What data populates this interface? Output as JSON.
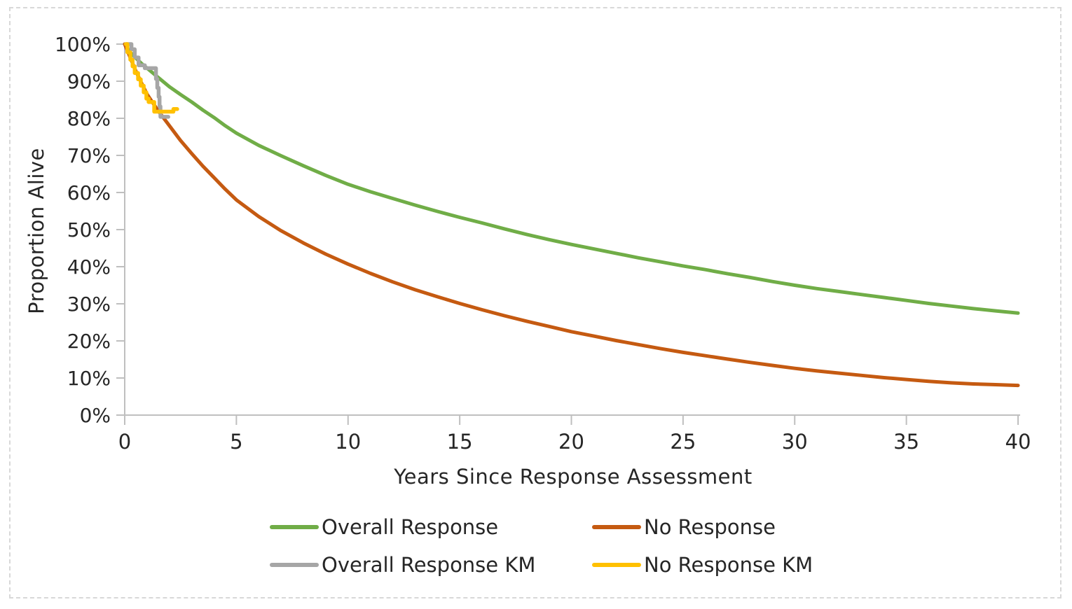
{
  "chart_data": {
    "type": "line",
    "title": "",
    "xlabel": "Years Since Response Assessment",
    "ylabel": "Proportion Alive",
    "xlim": [
      0,
      40
    ],
    "ylim": [
      0,
      100
    ],
    "grid": false,
    "legend_position": "bottom-two-rows",
    "axis_color": "#bfbfbf",
    "text_color": "#262626",
    "x_ticks": [
      {
        "value": 0,
        "label": "0"
      },
      {
        "value": 5,
        "label": "5"
      },
      {
        "value": 10,
        "label": "10"
      },
      {
        "value": 15,
        "label": "15"
      },
      {
        "value": 20,
        "label": "20"
      },
      {
        "value": 25,
        "label": "25"
      },
      {
        "value": 30,
        "label": "30"
      },
      {
        "value": 35,
        "label": "35"
      },
      {
        "value": 40,
        "label": "40"
      }
    ],
    "y_ticks": [
      {
        "value": 0,
        "label": "0%"
      },
      {
        "value": 10,
        "label": "10%"
      },
      {
        "value": 20,
        "label": "20%"
      },
      {
        "value": 30,
        "label": "30%"
      },
      {
        "value": 40,
        "label": "40%"
      },
      {
        "value": 50,
        "label": "50%"
      },
      {
        "value": 60,
        "label": "60%"
      },
      {
        "value": 70,
        "label": "70%"
      },
      {
        "value": 80,
        "label": "80%"
      },
      {
        "value": 90,
        "label": "90%"
      },
      {
        "value": 100,
        "label": "100%"
      }
    ],
    "series": [
      {
        "name": "Overall Response",
        "color": "#70ad47",
        "style": "smooth",
        "points": [
          [
            0,
            100
          ],
          [
            0.25,
            97.8
          ],
          [
            0.5,
            96.2
          ],
          [
            0.75,
            94.8
          ],
          [
            1,
            93.5
          ],
          [
            1.5,
            91
          ],
          [
            2,
            88.5
          ],
          [
            2.5,
            86.4
          ],
          [
            3,
            84.4
          ],
          [
            3.5,
            82.2
          ],
          [
            4,
            80.2
          ],
          [
            4.5,
            78
          ],
          [
            5,
            76
          ],
          [
            6,
            72.7
          ],
          [
            7,
            69.9
          ],
          [
            8,
            67.2
          ],
          [
            9,
            64.6
          ],
          [
            10,
            62.2
          ],
          [
            11,
            60.2
          ],
          [
            12,
            58.4
          ],
          [
            13,
            56.6
          ],
          [
            14,
            54.9
          ],
          [
            15,
            53.3
          ],
          [
            16,
            51.8
          ],
          [
            17,
            50.2
          ],
          [
            18,
            48.7
          ],
          [
            19,
            47.3
          ],
          [
            20,
            46
          ],
          [
            21,
            44.8
          ],
          [
            22,
            43.6
          ],
          [
            23,
            42.4
          ],
          [
            24,
            41.3
          ],
          [
            25,
            40.2
          ],
          [
            26,
            39.2
          ],
          [
            27,
            38.1
          ],
          [
            28,
            37.1
          ],
          [
            29,
            36
          ],
          [
            30,
            35
          ],
          [
            31,
            34.1
          ],
          [
            32,
            33.3
          ],
          [
            33,
            32.5
          ],
          [
            34,
            31.7
          ],
          [
            35,
            30.9
          ],
          [
            36,
            30.1
          ],
          [
            37,
            29.4
          ],
          [
            38,
            28.7
          ],
          [
            39,
            28.1
          ],
          [
            40,
            27.5
          ]
        ]
      },
      {
        "name": "No Response",
        "color": "#c55a11",
        "style": "smooth",
        "points": [
          [
            0,
            100
          ],
          [
            0.25,
            96.3
          ],
          [
            0.5,
            92.7
          ],
          [
            0.75,
            89.5
          ],
          [
            1,
            86.5
          ],
          [
            1.5,
            82
          ],
          [
            2,
            78
          ],
          [
            2.5,
            74
          ],
          [
            3,
            70.5
          ],
          [
            3.5,
            67.1
          ],
          [
            4,
            64
          ],
          [
            4.5,
            60.9
          ],
          [
            5,
            58
          ],
          [
            6,
            53.5
          ],
          [
            7,
            49.7
          ],
          [
            8,
            46.4
          ],
          [
            9,
            43.4
          ],
          [
            10,
            40.7
          ],
          [
            11,
            38.2
          ],
          [
            12,
            35.9
          ],
          [
            13,
            33.8
          ],
          [
            14,
            31.9
          ],
          [
            15,
            30.1
          ],
          [
            16,
            28.4
          ],
          [
            17,
            26.8
          ],
          [
            18,
            25.3
          ],
          [
            19,
            23.9
          ],
          [
            20,
            22.5
          ],
          [
            21,
            21.3
          ],
          [
            22,
            20.1
          ],
          [
            23,
            19
          ],
          [
            24,
            17.9
          ],
          [
            25,
            16.9
          ],
          [
            26,
            16
          ],
          [
            27,
            15.1
          ],
          [
            28,
            14.2
          ],
          [
            29,
            13.4
          ],
          [
            30,
            12.6
          ],
          [
            31,
            11.9
          ],
          [
            32,
            11.3
          ],
          [
            33,
            10.7
          ],
          [
            34,
            10.1
          ],
          [
            35,
            9.6
          ],
          [
            36,
            9.1
          ],
          [
            37,
            8.7
          ],
          [
            38,
            8.4
          ],
          [
            39,
            8.2
          ],
          [
            40,
            8
          ]
        ]
      },
      {
        "name": "Overall Response KM",
        "color": "#a6a6a6",
        "style": "step",
        "points": [
          [
            0.05,
            100
          ],
          [
            0.3,
            100
          ],
          [
            0.3,
            98.6
          ],
          [
            0.45,
            98.6
          ],
          [
            0.45,
            96.4
          ],
          [
            0.62,
            96.4
          ],
          [
            0.62,
            94.3
          ],
          [
            0.9,
            94.3
          ],
          [
            0.9,
            93.5
          ],
          [
            1.4,
            93.5
          ],
          [
            1.4,
            90.6
          ],
          [
            1.46,
            90.6
          ],
          [
            1.46,
            88.2
          ],
          [
            1.52,
            88.2
          ],
          [
            1.52,
            85.8
          ],
          [
            1.56,
            85.8
          ],
          [
            1.56,
            83.2
          ],
          [
            1.6,
            83.2
          ],
          [
            1.6,
            80.4
          ],
          [
            1.95,
            80.4
          ]
        ]
      },
      {
        "name": "No Response KM",
        "color": "#ffc000",
        "style": "step",
        "points": [
          [
            0.05,
            100
          ],
          [
            0.12,
            100
          ],
          [
            0.12,
            97.8
          ],
          [
            0.25,
            97.8
          ],
          [
            0.25,
            95.8
          ],
          [
            0.35,
            95.8
          ],
          [
            0.35,
            94
          ],
          [
            0.45,
            94
          ],
          [
            0.45,
            92.2
          ],
          [
            0.6,
            92.2
          ],
          [
            0.6,
            90.5
          ],
          [
            0.72,
            90.5
          ],
          [
            0.72,
            88.8
          ],
          [
            0.85,
            88.8
          ],
          [
            0.85,
            87
          ],
          [
            0.97,
            87
          ],
          [
            0.97,
            85.3
          ],
          [
            1.07,
            85.3
          ],
          [
            1.07,
            84.4
          ],
          [
            1.32,
            84.4
          ],
          [
            1.32,
            81.8
          ],
          [
            2.18,
            81.8
          ],
          [
            2.18,
            82.5
          ],
          [
            2.35,
            82.5
          ]
        ]
      }
    ]
  }
}
